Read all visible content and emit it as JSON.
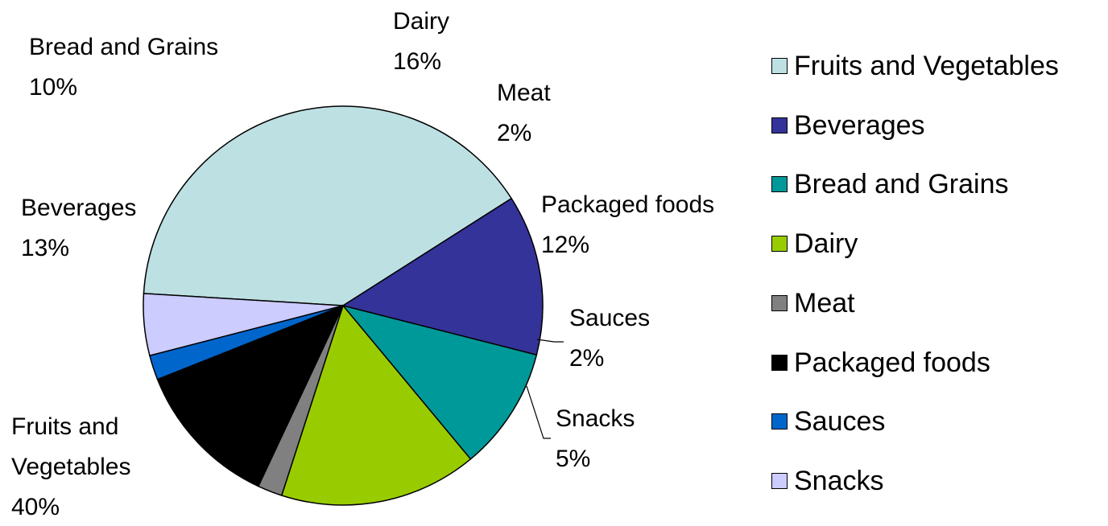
{
  "chart_data": {
    "type": "pie",
    "title": "",
    "slices": [
      {
        "label": "Fruits and Vegetables",
        "value": 40,
        "pct_label": "40%",
        "color": "#BDE0E3"
      },
      {
        "label": "Beverages",
        "value": 13,
        "pct_label": "13%",
        "color": "#343399"
      },
      {
        "label": "Bread and Grains",
        "value": 10,
        "pct_label": "10%",
        "color": "#009999"
      },
      {
        "label": "Dairy",
        "value": 16,
        "pct_label": "16%",
        "color": "#99CC00"
      },
      {
        "label": "Meat",
        "value": 2,
        "pct_label": "2%",
        "color": "#808080"
      },
      {
        "label": "Packaged foods",
        "value": 12,
        "pct_label": "12%",
        "color": "#000000"
      },
      {
        "label": "Sauces",
        "value": 2,
        "pct_label": "2%",
        "color": "#0066CC"
      },
      {
        "label": "Snacks",
        "value": 5,
        "pct_label": "5%",
        "color": "#CCCCFF"
      }
    ],
    "legend_position": "right"
  }
}
